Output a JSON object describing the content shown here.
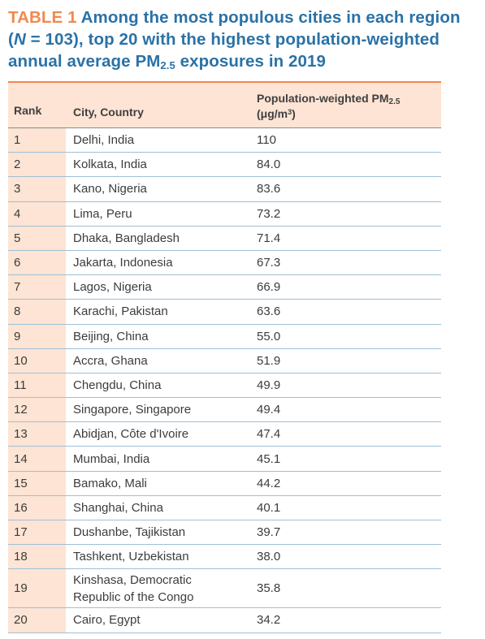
{
  "title": {
    "label": "TABLE 1",
    "text_a": " Among the most populous cities in each region (",
    "n_symbol": "N",
    "text_b": " = 103),  top 20 with the highest population-weighted annual average PM",
    "sub": "2.5",
    "text_c": " exposures in 2019"
  },
  "columns": {
    "rank": "Rank",
    "city": "City, Country",
    "value_main": "Population-weighted PM",
    "value_sub": "2.5",
    "value_unit_a": "(μg/m",
    "value_unit_sup": "3",
    "value_unit_b": ")"
  },
  "rows": [
    {
      "rank": "1",
      "city": "Delhi, India",
      "value": "110"
    },
    {
      "rank": "2",
      "city": "Kolkata, India",
      "value": "84.0"
    },
    {
      "rank": "3",
      "city": "Kano, Nigeria",
      "value": "83.6"
    },
    {
      "rank": "4",
      "city": "Lima, Peru",
      "value": "73.2"
    },
    {
      "rank": "5",
      "city": "Dhaka, Bangladesh",
      "value": "71.4"
    },
    {
      "rank": "6",
      "city": "Jakarta, Indonesia",
      "value": "67.3"
    },
    {
      "rank": "7",
      "city": "Lagos, Nigeria",
      "value": "66.9"
    },
    {
      "rank": "8",
      "city": "Karachi, Pakistan",
      "value": "63.6"
    },
    {
      "rank": "9",
      "city": "Beijing, China",
      "value": "55.0"
    },
    {
      "rank": "10",
      "city": "Accra, Ghana",
      "value": "51.9"
    },
    {
      "rank": "11",
      "city": "Chengdu, China",
      "value": "49.9"
    },
    {
      "rank": "12",
      "city": "Singapore, Singapore",
      "value": "49.4"
    },
    {
      "rank": "13",
      "city": "Abidjan, Côte d'Ivoire",
      "value": "47.4"
    },
    {
      "rank": "14",
      "city": "Mumbai, India",
      "value": "45.1"
    },
    {
      "rank": "15",
      "city": "Bamako, Mali",
      "value": "44.2"
    },
    {
      "rank": "16",
      "city": "Shanghai, China",
      "value": "40.1"
    },
    {
      "rank": "17",
      "city": "Dushanbe, Tajikistan",
      "value": "39.7"
    },
    {
      "rank": "18",
      "city": "Tashkent, Uzbekistan",
      "value": "38.0"
    },
    {
      "rank": "19",
      "city": "Kinshasa, Democratic\nRepublic of the Congo",
      "value": "35.8"
    },
    {
      "rank": "20",
      "city": "Cairo, Egypt",
      "value": "34.2"
    }
  ],
  "colors": {
    "title": "#2a72a6",
    "label": "#f0894e",
    "rank_bg": "#fde4d4",
    "row_rule": "#9fbfd6"
  }
}
